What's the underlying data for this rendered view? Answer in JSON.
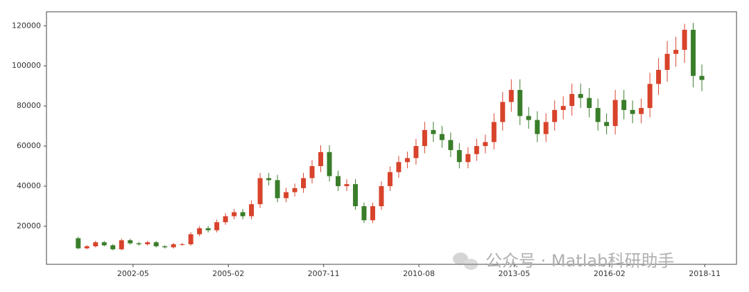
{
  "chart_data": {
    "type": "candlestick",
    "x": [
      "2000-10",
      "2001-01",
      "2001-04",
      "2001-07",
      "2001-10",
      "2002-01",
      "2002-04",
      "2002-07",
      "2002-10",
      "2003-01",
      "2003-04",
      "2003-07",
      "2003-10",
      "2004-01",
      "2004-04",
      "2004-07",
      "2004-10",
      "2005-01",
      "2005-04",
      "2005-07",
      "2005-10",
      "2006-01",
      "2006-04",
      "2006-07",
      "2006-10",
      "2007-01",
      "2007-04",
      "2007-07",
      "2007-10",
      "2008-01",
      "2008-04",
      "2008-07",
      "2008-10",
      "2009-01",
      "2009-04",
      "2009-07",
      "2009-10",
      "2010-01",
      "2010-04",
      "2010-07",
      "2010-10",
      "2011-01",
      "2011-04",
      "2011-07",
      "2011-10",
      "2012-01",
      "2012-04",
      "2012-07",
      "2012-10",
      "2013-01",
      "2013-04",
      "2013-07",
      "2013-10",
      "2014-01",
      "2014-04",
      "2014-07",
      "2014-10",
      "2015-01",
      "2015-04",
      "2015-07",
      "2015-10",
      "2016-01",
      "2016-04",
      "2016-07",
      "2016-10",
      "2017-01",
      "2017-04",
      "2017-07",
      "2017-10",
      "2018-01",
      "2018-04",
      "2018-07",
      "2018-10"
    ],
    "open": [
      14000,
      9000,
      10000,
      12000,
      10500,
      8500,
      13000,
      11500,
      11000,
      12000,
      10000,
      9500,
      11000,
      11000,
      16000,
      19000,
      18000,
      22000,
      25000,
      27000,
      25000,
      31000,
      44000,
      43000,
      34000,
      37000,
      39000,
      44000,
      50000,
      57000,
      45000,
      40000,
      41000,
      30000,
      23000,
      30000,
      40000,
      47000,
      52000,
      54000,
      60000,
      68000,
      66000,
      63000,
      58000,
      52000,
      56000,
      60000,
      62000,
      72000,
      82000,
      88000,
      75000,
      73000,
      66000,
      72000,
      78000,
      80000,
      86000,
      84000,
      79000,
      72000,
      70000,
      83000,
      78000,
      76000,
      79000,
      91000,
      98000,
      106000,
      108000,
      118000,
      95000
    ],
    "high": [
      14800,
      10600,
      12700,
      12700,
      11100,
      13800,
      13800,
      12200,
      12700,
      12700,
      10600,
      11700,
      11700,
      17000,
      20100,
      20100,
      23300,
      26500,
      28600,
      28600,
      32900,
      46600,
      46600,
      45600,
      39200,
      41300,
      46600,
      53000,
      60400,
      60400,
      47700,
      43500,
      43500,
      31800,
      31800,
      42400,
      49800,
      55100,
      57200,
      63600,
      72100,
      72100,
      70000,
      66800,
      61500,
      59400,
      63600,
      65700,
      76300,
      86900,
      93300,
      93300,
      79500,
      77400,
      76300,
      82700,
      84800,
      91200,
      91200,
      89000,
      83700,
      76300,
      88000,
      88000,
      82700,
      83700,
      96500,
      103900,
      112400,
      114500,
      121000,
      121500,
      100700
    ],
    "low": [
      8500,
      8500,
      9400,
      9900,
      8000,
      8000,
      10800,
      10300,
      10300,
      9400,
      8900,
      8900,
      10300,
      10300,
      15000,
      16900,
      16900,
      20700,
      23500,
      23500,
      23500,
      29100,
      40400,
      32000,
      32000,
      34800,
      36700,
      41400,
      47000,
      42300,
      37600,
      37600,
      28200,
      21600,
      21600,
      28200,
      37600,
      44200,
      48900,
      50800,
      56400,
      62000,
      59200,
      54500,
      48900,
      48900,
      52600,
      56400,
      58300,
      67700,
      77100,
      70500,
      68600,
      62000,
      62000,
      67700,
      73300,
      75200,
      79000,
      74300,
      67700,
      65800,
      65800,
      73300,
      71400,
      71400,
      74300,
      85500,
      92100,
      99600,
      101500,
      89300,
      87400
    ],
    "close": [
      9000,
      10000,
      12000,
      10500,
      8500,
      13000,
      11500,
      11000,
      12000,
      10000,
      9500,
      11000,
      11000,
      16000,
      19000,
      18000,
      22000,
      25000,
      27000,
      25000,
      31000,
      44000,
      43000,
      34000,
      37000,
      39000,
      44000,
      50000,
      57000,
      45000,
      40000,
      41000,
      30000,
      23000,
      30000,
      40000,
      47000,
      52000,
      54000,
      60000,
      68000,
      66000,
      63000,
      58000,
      52000,
      56000,
      60000,
      62000,
      72000,
      82000,
      88000,
      75000,
      73000,
      66000,
      72000,
      78000,
      80000,
      86000,
      84000,
      79000,
      72000,
      70000,
      83000,
      78000,
      76000,
      79000,
      91000,
      98000,
      106000,
      108000,
      118000,
      95000,
      93000
    ],
    "up_color": "#d8432b",
    "down_color": "#3a7d2a",
    "xlim": [
      "1999-11",
      "2019-10"
    ],
    "xticks": [
      "2002-05",
      "2005-02",
      "2007-11",
      "2010-08",
      "2013-05",
      "2016-02",
      "2018-11"
    ],
    "ylim": [
      1000,
      127000
    ],
    "yticks": [
      20000,
      40000,
      60000,
      80000,
      100000,
      120000
    ],
    "watermark": "公众号 · Matlab科研助手"
  }
}
